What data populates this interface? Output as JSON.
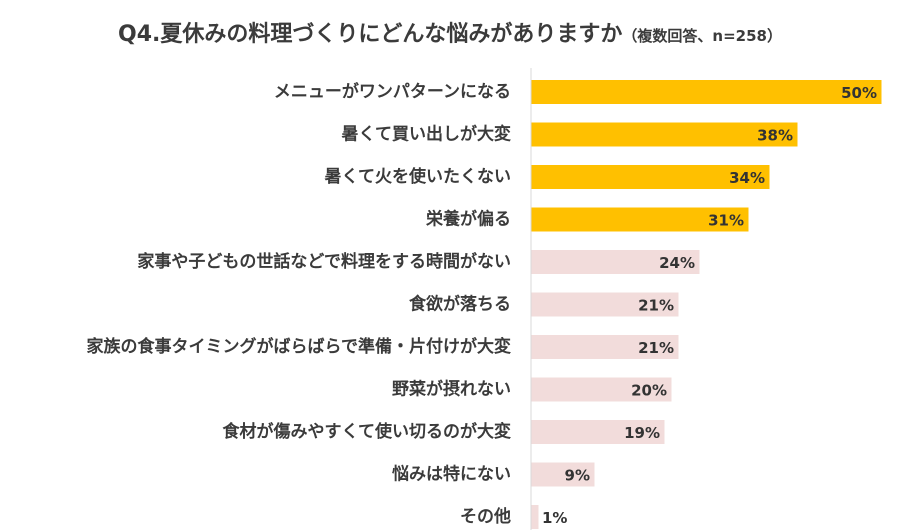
{
  "chart_data": {
    "type": "bar",
    "orientation": "horizontal",
    "title": "Q4.夏休みの料理づくりにどんな悩みがありますか",
    "subtitle": "（複数回答、n=258）",
    "categories": [
      "メニューがワンパターンになる",
      "暑くて買い出しが大変",
      "暑くて火を使いたくない",
      "栄養が偏る",
      "家事や子どもの世話などで料理をする時間がない",
      "食欲が落ちる",
      "家族の食事タイミングがばらばらで準備・片付けが大変",
      "野菜が摂れない",
      "食材が傷みやすくて使い切るのが大変",
      "悩みは特にない",
      "その他"
    ],
    "values": [
      50,
      38,
      34,
      31,
      24,
      21,
      21,
      20,
      19,
      9,
      1
    ],
    "value_labels": [
      "50%",
      "38%",
      "34%",
      "31%",
      "24%",
      "21%",
      "21%",
      "20%",
      "19%",
      "9%",
      "1%"
    ],
    "unit": "%",
    "xlim": [
      0,
      50
    ],
    "highlight_count": 4,
    "colors": {
      "highlight": "#ffc000",
      "normal": "#f2dcdb",
      "axis": "#d9d9d9"
    },
    "grid": false,
    "legend": "none"
  }
}
